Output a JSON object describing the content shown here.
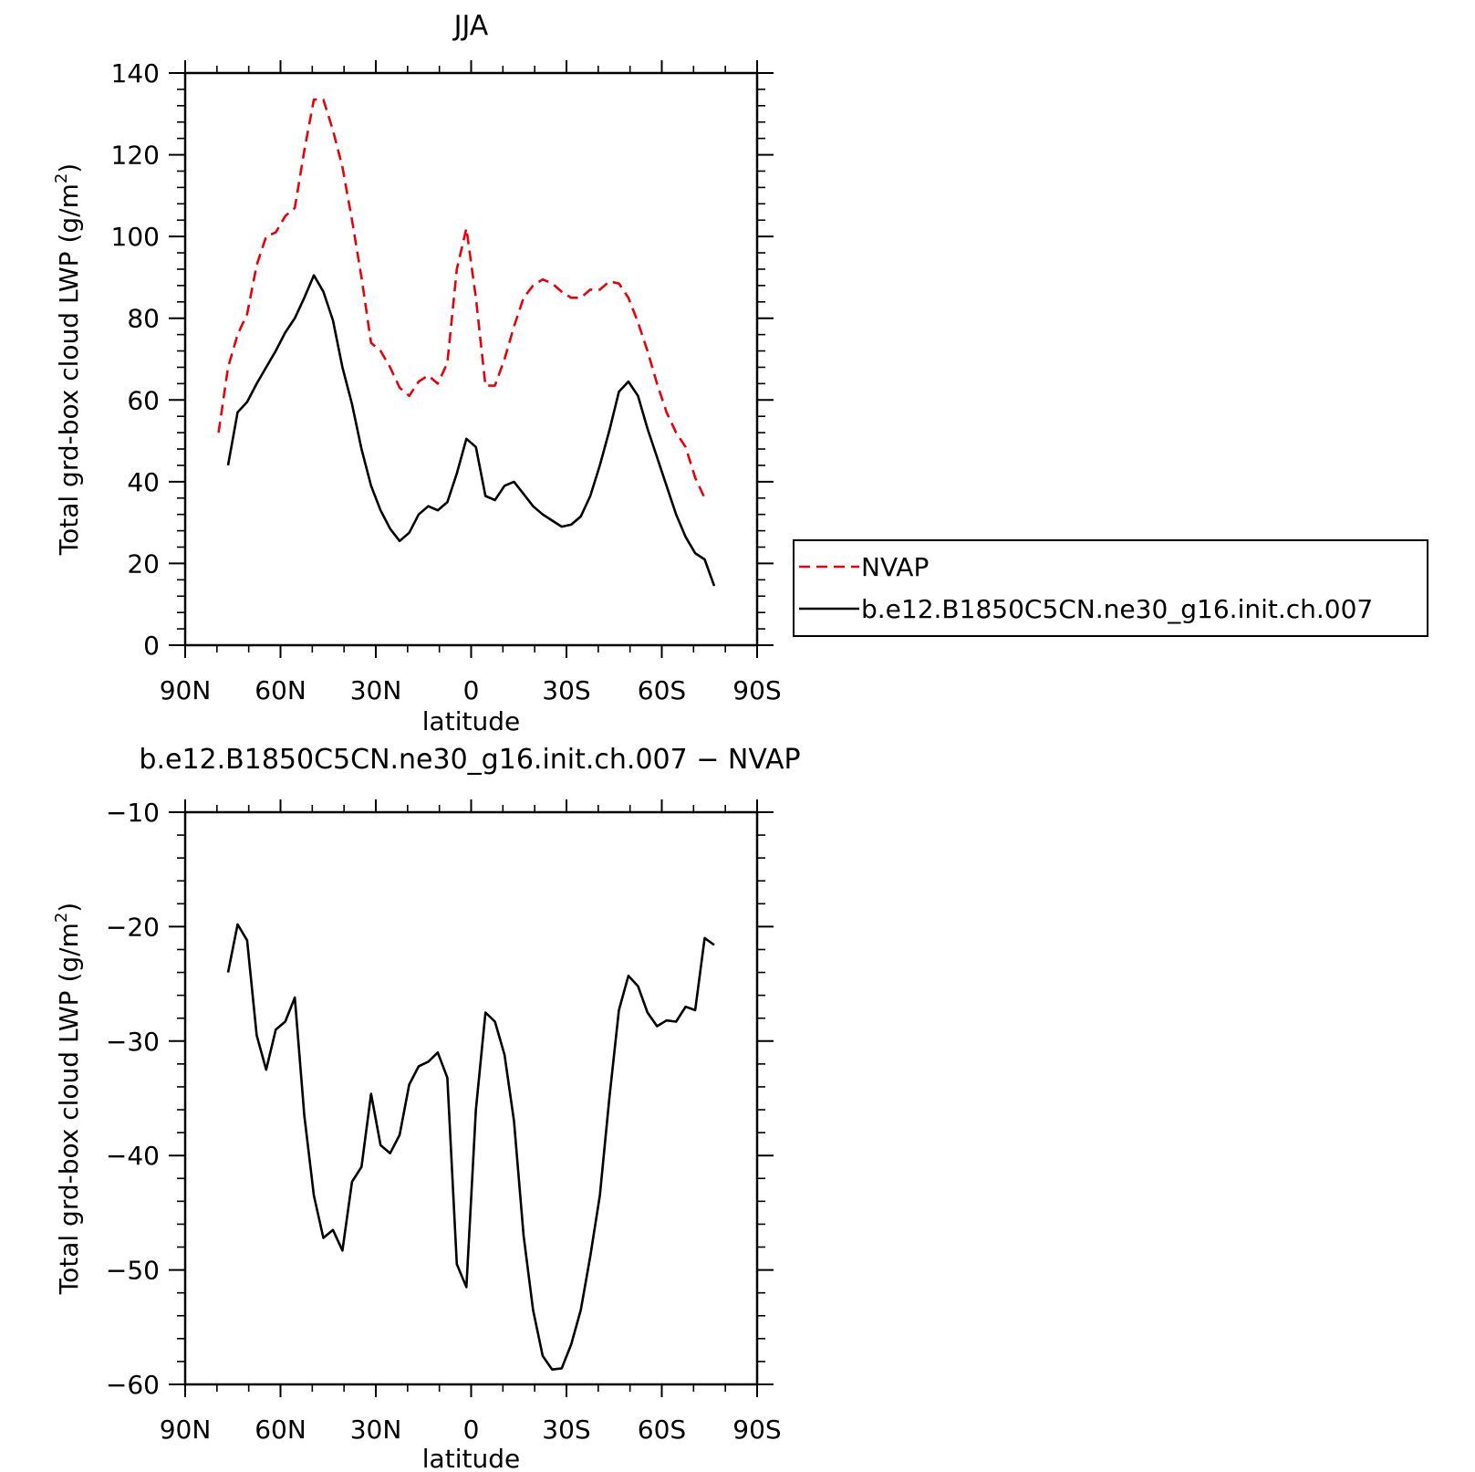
{
  "chart_data": [
    {
      "type": "line",
      "title": "JJA",
      "xlabel": "latitude",
      "ylabel_main": "Total grd-box cloud LWP (g/m",
      "ylabel_sup": "2",
      "ylabel_close": ")",
      "xlim": [
        90,
        -90
      ],
      "ylim": [
        0,
        140
      ],
      "xticks": [
        {
          "value": 90,
          "label": "90N"
        },
        {
          "value": 60,
          "label": "60N"
        },
        {
          "value": 30,
          "label": "30N"
        },
        {
          "value": 0,
          "label": "0"
        },
        {
          "value": -30,
          "label": "30S"
        },
        {
          "value": -60,
          "label": "60S"
        },
        {
          "value": -90,
          "label": "90S"
        }
      ],
      "yticks": [
        {
          "value": 0,
          "label": "0"
        },
        {
          "value": 20,
          "label": "20"
        },
        {
          "value": 40,
          "label": "40"
        },
        {
          "value": 60,
          "label": "60"
        },
        {
          "value": 80,
          "label": "80"
        },
        {
          "value": 100,
          "label": "100"
        },
        {
          "value": 120,
          "label": "120"
        },
        {
          "value": 140,
          "label": "140"
        }
      ],
      "legend": "right",
      "series": [
        {
          "name": "NVAP",
          "color": "#e8000b",
          "dash": "dashed",
          "points": [
            [
              79.5,
              52
            ],
            [
              76.5,
              68
            ],
            [
              73.5,
              76
            ],
            [
              70.5,
              81
            ],
            [
              67.5,
              93
            ],
            [
              64.5,
              100
            ],
            [
              61.5,
              101
            ],
            [
              58.5,
              105
            ],
            [
              55.5,
              107
            ],
            [
              52.5,
              121
            ],
            [
              49.5,
              133.5
            ],
            [
              46.5,
              133.5
            ],
            [
              43.5,
              126
            ],
            [
              40.5,
              117
            ],
            [
              37.5,
              104
            ],
            [
              34.5,
              90
            ],
            [
              31.5,
              74
            ],
            [
              28.5,
              72
            ],
            [
              25.5,
              68
            ],
            [
              22.5,
              63
            ],
            [
              19.5,
              61
            ],
            [
              16.5,
              64.5
            ],
            [
              13.5,
              66
            ],
            [
              10.5,
              64
            ],
            [
              7.5,
              69
            ],
            [
              4.5,
              92
            ],
            [
              1.5,
              102
            ],
            [
              -1.5,
              85
            ],
            [
              -4.5,
              63.5
            ],
            [
              -7.5,
              63.5
            ],
            [
              -10.5,
              70
            ],
            [
              -13.5,
              78
            ],
            [
              -16.5,
              85
            ],
            [
              -19.5,
              88
            ],
            [
              -22.5,
              89.5
            ],
            [
              -25.5,
              88.5
            ],
            [
              -28.5,
              86.5
            ],
            [
              -31.5,
              85
            ],
            [
              -34.5,
              85
            ],
            [
              -37.5,
              87
            ],
            [
              -40.5,
              87
            ],
            [
              -43.5,
              89
            ],
            [
              -46.5,
              88.5
            ],
            [
              -49.5,
              85
            ],
            [
              -52.5,
              79
            ],
            [
              -55.5,
              72
            ],
            [
              -58.5,
              64
            ],
            [
              -61.5,
              57
            ],
            [
              -64.5,
              52
            ],
            [
              -67.5,
              48.5
            ],
            [
              -70.5,
              41
            ],
            [
              -73.5,
              36
            ]
          ]
        },
        {
          "name": "b.e12.B1850C5CN.ne30_g16.init.ch.007",
          "color": "#000000",
          "dash": "solid",
          "points": [
            [
              76.5,
              44
            ],
            [
              73.5,
              57
            ],
            [
              70.5,
              59.5
            ],
            [
              67.5,
              64
            ],
            [
              64.5,
              68
            ],
            [
              61.5,
              72
            ],
            [
              58.5,
              76.5
            ],
            [
              55.5,
              80
            ],
            [
              52.5,
              85
            ],
            [
              49.5,
              90.5
            ],
            [
              46.5,
              86.5
            ],
            [
              43.5,
              79.5
            ],
            [
              40.5,
              68
            ],
            [
              37.5,
              59
            ],
            [
              34.5,
              48
            ],
            [
              31.5,
              39
            ],
            [
              28.5,
              33
            ],
            [
              25.5,
              28.5
            ],
            [
              22.5,
              25.5
            ],
            [
              19.5,
              27.5
            ],
            [
              16.5,
              32
            ],
            [
              13.5,
              34
            ],
            [
              10.5,
              33
            ],
            [
              7.5,
              35
            ],
            [
              4.5,
              42
            ],
            [
              1.5,
              50.5
            ],
            [
              -1.5,
              48.5
            ],
            [
              -4.5,
              36.5
            ],
            [
              -7.5,
              35.5
            ],
            [
              -10.5,
              39
            ],
            [
              -13.5,
              40
            ],
            [
              -16.5,
              37
            ],
            [
              -19.5,
              34
            ],
            [
              -22.5,
              32
            ],
            [
              -25.5,
              30.5
            ],
            [
              -28.5,
              29
            ],
            [
              -31.5,
              29.5
            ],
            [
              -34.5,
              31.5
            ],
            [
              -37.5,
              36.5
            ],
            [
              -40.5,
              44
            ],
            [
              -43.5,
              52.5
            ],
            [
              -46.5,
              62
            ],
            [
              -49.5,
              64.5
            ],
            [
              -52.5,
              61
            ],
            [
              -55.5,
              53
            ],
            [
              -58.5,
              46
            ],
            [
              -61.5,
              39
            ],
            [
              -64.5,
              32
            ],
            [
              -67.5,
              26.5
            ],
            [
              -70.5,
              22.5
            ],
            [
              -73.5,
              21
            ],
            [
              -76.5,
              14.5
            ]
          ]
        }
      ]
    },
    {
      "type": "line",
      "title": "b.e12.B1850C5CN.ne30_g16.init.ch.007 − NVAP",
      "xlabel": "latitude",
      "ylabel_main": "Total grd-box cloud LWP (g/m",
      "ylabel_sup": "2",
      "ylabel_close": ")",
      "xlim": [
        90,
        -90
      ],
      "ylim": [
        -60,
        -10
      ],
      "xticks": [
        {
          "value": 90,
          "label": "90N"
        },
        {
          "value": 60,
          "label": "60N"
        },
        {
          "value": 30,
          "label": "30N"
        },
        {
          "value": 0,
          "label": "0"
        },
        {
          "value": -30,
          "label": "30S"
        },
        {
          "value": -60,
          "label": "60S"
        },
        {
          "value": -90,
          "label": "90S"
        }
      ],
      "yticks": [
        {
          "value": -60,
          "label": "−60"
        },
        {
          "value": -50,
          "label": "−50"
        },
        {
          "value": -40,
          "label": "−40"
        },
        {
          "value": -30,
          "label": "−30"
        },
        {
          "value": -20,
          "label": "−20"
        },
        {
          "value": -10,
          "label": "−10"
        }
      ],
      "series": [
        {
          "color": "#000000",
          "dash": "solid",
          "points": [
            [
              76.5,
              -24
            ],
            [
              73.5,
              -19.8
            ],
            [
              70.5,
              -21.2
            ],
            [
              67.5,
              -29.5
            ],
            [
              64.5,
              -32.5
            ],
            [
              61.5,
              -29
            ],
            [
              58.5,
              -28.3
            ],
            [
              55.5,
              -26.2
            ],
            [
              52.5,
              -36.5
            ],
            [
              49.5,
              -43.5
            ],
            [
              46.5,
              -47.2
            ],
            [
              43.5,
              -46.5
            ],
            [
              40.5,
              -48.3
            ],
            [
              37.5,
              -42.3
            ],
            [
              34.5,
              -41
            ],
            [
              31.5,
              -34.6
            ],
            [
              28.5,
              -39.1
            ],
            [
              25.5,
              -39.8
            ],
            [
              22.5,
              -38.2
            ],
            [
              19.5,
              -33.8
            ],
            [
              16.5,
              -32.2
            ],
            [
              13.5,
              -31.8
            ],
            [
              10.5,
              -31
            ],
            [
              7.5,
              -33.2
            ],
            [
              4.5,
              -49.5
            ],
            [
              1.5,
              -51.5
            ],
            [
              -1.5,
              -36
            ],
            [
              -4.5,
              -27.5
            ],
            [
              -7.5,
              -28.3
            ],
            [
              -10.5,
              -31.2
            ],
            [
              -13.5,
              -37
            ],
            [
              -16.5,
              -47
            ],
            [
              -19.5,
              -53.5
            ],
            [
              -22.5,
              -57.5
            ],
            [
              -25.5,
              -58.7
            ],
            [
              -28.5,
              -58.6
            ],
            [
              -31.5,
              -56.5
            ],
            [
              -34.5,
              -53.5
            ],
            [
              -37.5,
              -48.8
            ],
            [
              -40.5,
              -43.5
            ],
            [
              -43.5,
              -35
            ],
            [
              -46.5,
              -27.3
            ],
            [
              -49.5,
              -24.3
            ],
            [
              -52.5,
              -25.2
            ],
            [
              -55.5,
              -27.5
            ],
            [
              -58.5,
              -28.7
            ],
            [
              -61.5,
              -28.2
            ],
            [
              -64.5,
              -28.3
            ],
            [
              -67.5,
              -27
            ],
            [
              -70.5,
              -27.3
            ],
            [
              -73.5,
              -21
            ],
            [
              -76.5,
              -21.6
            ]
          ]
        }
      ]
    }
  ]
}
